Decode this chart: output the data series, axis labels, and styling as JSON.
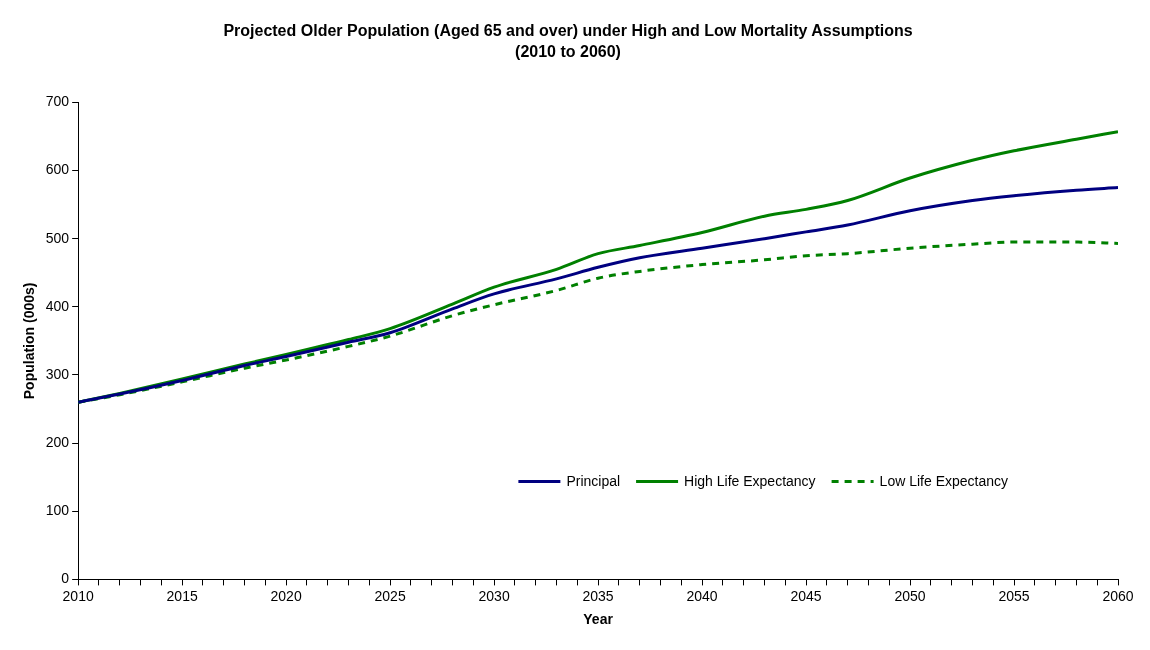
{
  "chart_data": {
    "type": "line",
    "title": "Projected Older Population (Aged 65 and over) under High and Low Mortality Assumptions",
    "subtitle": "(2010 to 2060)",
    "xlabel": "Year",
    "ylabel": "Population (000s)",
    "x": [
      2010,
      2012,
      2015,
      2018,
      2020,
      2023,
      2025,
      2028,
      2030,
      2033,
      2035,
      2037,
      2040,
      2043,
      2045,
      2047,
      2050,
      2053,
      2055,
      2058,
      2060
    ],
    "series": [
      {
        "name": "Principal",
        "color": "#000080",
        "line_style": "solid",
        "values": [
          260,
          272,
          292,
          314,
          327,
          348,
          362,
          397,
          419,
          441,
          458,
          472,
          486,
          500,
          510,
          520,
          541,
          556,
          563,
          571,
          575
        ]
      },
      {
        "name": "High Life Expectancy",
        "color": "#008000",
        "line_style": "solid",
        "values": [
          260,
          273,
          294,
          316,
          330,
          352,
          368,
          404,
          429,
          455,
          478,
          490,
          509,
          533,
          543,
          556,
          589,
          615,
          629,
          646,
          657
        ]
      },
      {
        "name": "Low Life Expectancy",
        "color": "#008000",
        "line_style": "dashed",
        "values": [
          260,
          271,
          290,
          310,
          322,
          342,
          357,
          387,
          403,
          424,
          442,
          452,
          462,
          469,
          475,
          478,
          486,
          492,
          495,
          495,
          493
        ]
      }
    ],
    "xlim": [
      2010,
      2060
    ],
    "xticks": [
      2010,
      {
        "value": 2011,
        "label": null
      },
      {
        "value": 2012,
        "label": null
      },
      {
        "value": 2013,
        "label": null
      },
      {
        "value": 2014,
        "label": null
      },
      2015,
      {
        "value": 2016,
        "label": null
      },
      {
        "value": 2017,
        "label": null
      },
      {
        "value": 2018,
        "label": null
      },
      {
        "value": 2019,
        "label": null
      },
      2020,
      {
        "value": 2021,
        "label": null
      },
      {
        "value": 2022,
        "label": null
      },
      {
        "value": 2023,
        "label": null
      },
      {
        "value": 2024,
        "label": null
      },
      2025,
      {
        "value": 2026,
        "label": null
      },
      {
        "value": 2027,
        "label": null
      },
      {
        "value": 2028,
        "label": null
      },
      {
        "value": 2029,
        "label": null
      },
      2030,
      {
        "value": 2031,
        "label": null
      },
      {
        "value": 2032,
        "label": null
      },
      {
        "value": 2033,
        "label": null
      },
      {
        "value": 2034,
        "label": null
      },
      2035,
      {
        "value": 2036,
        "label": null
      },
      {
        "value": 2037,
        "label": null
      },
      {
        "value": 2038,
        "label": null
      },
      {
        "value": 2039,
        "label": null
      },
      2040,
      {
        "value": 2041,
        "label": null
      },
      {
        "value": 2042,
        "label": null
      },
      {
        "value": 2043,
        "label": null
      },
      {
        "value": 2044,
        "label": null
      },
      2045,
      {
        "value": 2046,
        "label": null
      },
      {
        "value": 2047,
        "label": null
      },
      {
        "value": 2048,
        "label": null
      },
      {
        "value": 2049,
        "label": null
      },
      2050,
      {
        "value": 2051,
        "label": null
      },
      {
        "value": 2052,
        "label": null
      },
      {
        "value": 2053,
        "label": null
      },
      {
        "value": 2054,
        "label": null
      },
      2055,
      {
        "value": 2056,
        "label": null
      },
      {
        "value": 2057,
        "label": null
      },
      {
        "value": 2058,
        "label": null
      },
      {
        "value": 2059,
        "label": null
      },
      2060
    ],
    "ylim": [
      0,
      700
    ],
    "yticks": [
      0,
      100,
      200,
      300,
      400,
      500,
      600,
      700
    ],
    "grid": false,
    "legend": "bottom right",
    "marker": "none"
  }
}
